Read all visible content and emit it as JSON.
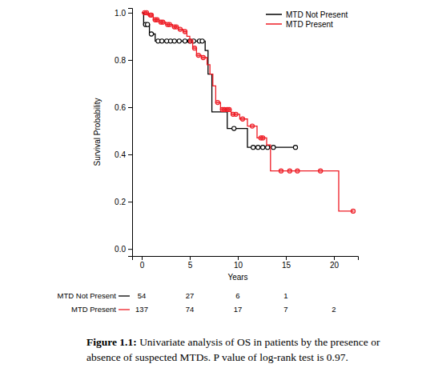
{
  "chart_data": {
    "type": "line",
    "x_label": "Years",
    "y_label": "Survival Probability",
    "xlim": [
      -1,
      22.5
    ],
    "ylim": [
      -0.03,
      1.02
    ],
    "xticks": [
      0,
      5,
      10,
      15,
      20
    ],
    "yticks": [
      {
        "value": 0,
        "label": "0.0"
      },
      0.2,
      0.4,
      0.6,
      0.8,
      {
        "value": 1,
        "label": "1.0"
      }
    ],
    "grid": false,
    "legend": "top-right",
    "risk_times": [
      0,
      5,
      10,
      15,
      20
    ],
    "series": [
      {
        "name": "MTD Not Present",
        "color": "#000000",
        "marker": "circle-open",
        "line_style": "solid",
        "x": [
          0,
          0.2,
          0.8,
          1.4,
          6.6,
          6.9,
          7.3,
          8.9,
          11.0,
          16
        ],
        "values": [
          1.0,
          0.95,
          0.91,
          0.88,
          0.84,
          0.74,
          0.58,
          0.51,
          0.43,
          0.43
        ],
        "censor_x": [
          0.4,
          0.6,
          1.0,
          1.7,
          2.1,
          2.6,
          3.0,
          3.4,
          3.9,
          4.5,
          5.0,
          5.4,
          6.0,
          6.3,
          9.6,
          11.6,
          12.1,
          12.6,
          13.1,
          13.7,
          16.0
        ],
        "censor_values": [
          0.95,
          0.95,
          0.91,
          0.88,
          0.88,
          0.88,
          0.88,
          0.88,
          0.88,
          0.88,
          0.88,
          0.88,
          0.88,
          0.88,
          0.51,
          0.43,
          0.43,
          0.43,
          0.43,
          0.43,
          0.43
        ],
        "at_risk": [
          54,
          27,
          6,
          1,
          null
        ]
      },
      {
        "name": "MTD Present",
        "color": "#ee1c25",
        "marker": "circle",
        "line_style": "solid",
        "x": [
          0,
          0.6,
          1.2,
          1.8,
          2.5,
          3.2,
          3.8,
          4.3,
          4.7,
          5.0,
          5.3,
          5.7,
          6.2,
          6.8,
          7.1,
          7.4,
          7.7,
          8.2,
          9.3,
          10.2,
          11.0,
          12.0,
          13.0,
          13.4,
          20.5,
          22
        ],
        "values": [
          1.0,
          0.99,
          0.97,
          0.96,
          0.95,
          0.94,
          0.93,
          0.92,
          0.9,
          0.88,
          0.85,
          0.82,
          0.81,
          0.78,
          0.74,
          0.69,
          0.62,
          0.59,
          0.57,
          0.55,
          0.52,
          0.47,
          0.44,
          0.33,
          0.16,
          0.16
        ],
        "censor_x": [
          0.3,
          0.5,
          0.9,
          1.0,
          1.4,
          1.6,
          2.0,
          2.2,
          2.7,
          2.9,
          3.4,
          3.6,
          4.0,
          4.5,
          5.1,
          5.5,
          5.9,
          6.4,
          7.9,
          8.4,
          8.6,
          8.9,
          9.1,
          9.5,
          9.8,
          10.5,
          11.5,
          12.4,
          12.6,
          14.5,
          15.4,
          16.2,
          18.6,
          22.0
        ],
        "censor_values": [
          1.0,
          1.0,
          0.99,
          0.99,
          0.97,
          0.97,
          0.96,
          0.96,
          0.95,
          0.95,
          0.94,
          0.94,
          0.93,
          0.92,
          0.88,
          0.85,
          0.82,
          0.81,
          0.62,
          0.59,
          0.59,
          0.59,
          0.59,
          0.57,
          0.57,
          0.55,
          0.52,
          0.47,
          0.47,
          0.33,
          0.33,
          0.33,
          0.33,
          0.16
        ],
        "at_risk": [
          137,
          74,
          17,
          7,
          2
        ]
      }
    ],
    "caption_label": "Figure 1.1:",
    "caption": "Univariate analysis of OS in patients by the presence or absence of suspected MTDs. P value of log-rank test is 0.97."
  }
}
